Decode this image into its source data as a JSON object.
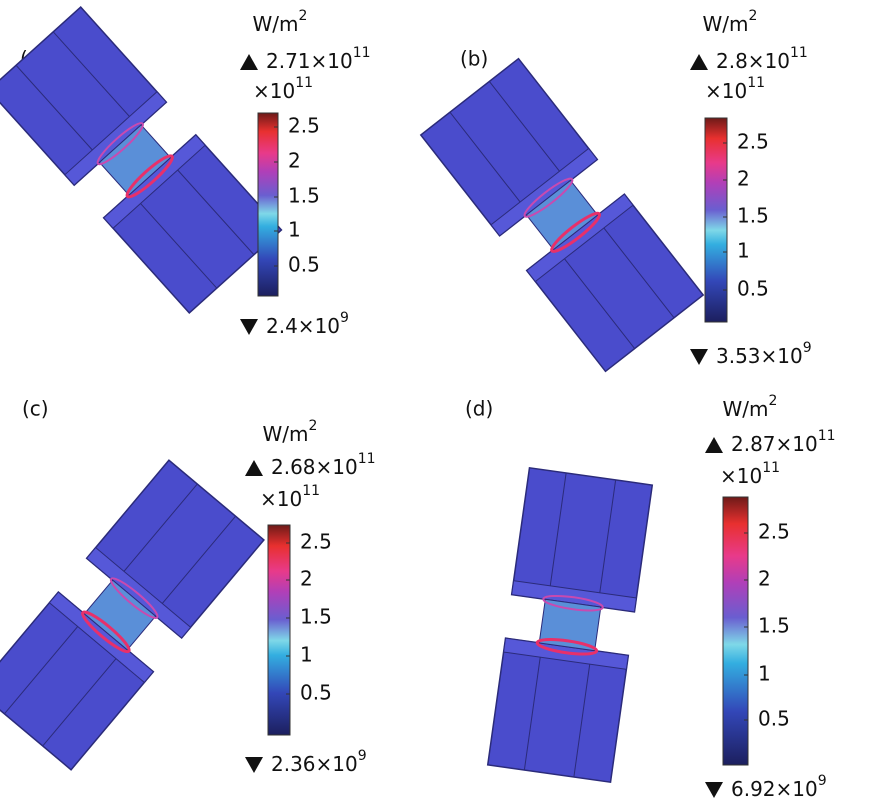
{
  "panels": [
    {
      "label": "(a)",
      "unit": "W/m",
      "unit_exp": "2",
      "max": "2.71×10",
      "max_exp": "11",
      "scale": "×10",
      "scale_exp": "11",
      "ticks": [
        "2.5",
        "2",
        "1.5",
        "1",
        "0.5"
      ],
      "min": "2.4×10",
      "min_exp": "9"
    },
    {
      "label": "(b)",
      "unit": "W/m",
      "unit_exp": "2",
      "max": "2.8×10",
      "max_exp": "11",
      "scale": "×10",
      "scale_exp": "11",
      "ticks": [
        "2.5",
        "2",
        "1.5",
        "1",
        "0.5"
      ],
      "min": "3.53×10",
      "min_exp": "9"
    },
    {
      "label": "(c)",
      "unit": "W/m",
      "unit_exp": "2",
      "max": "2.68×10",
      "max_exp": "11",
      "scale": "×10",
      "scale_exp": "11",
      "ticks": [
        "2.5",
        "2",
        "1.5",
        "1",
        "0.5"
      ],
      "min": "2.36×10",
      "min_exp": "9"
    },
    {
      "label": "(d)",
      "unit": "W/m",
      "unit_exp": "2",
      "max": "2.87×10",
      "max_exp": "11",
      "scale": "×10",
      "scale_exp": "11",
      "ticks": [
        "2.5",
        "2",
        "1.5",
        "1",
        "0.5"
      ],
      "min": "6.92×10",
      "min_exp": "9"
    }
  ]
}
